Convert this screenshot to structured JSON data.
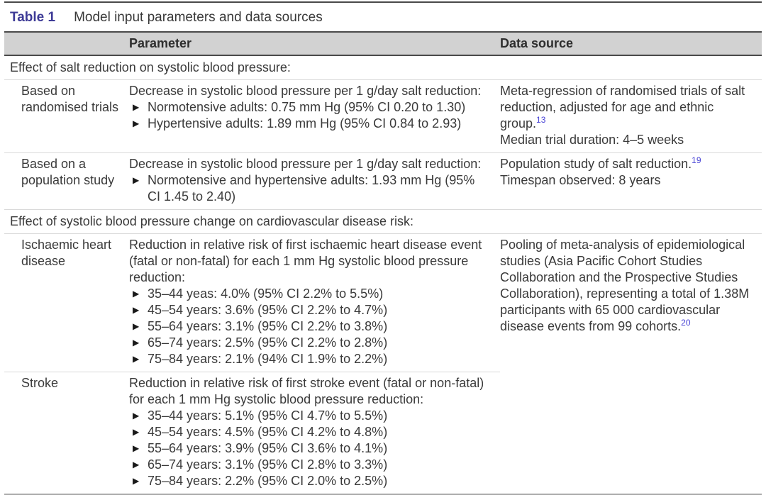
{
  "glyphs": {
    "bullet": "▶"
  },
  "colors": {
    "table_label": "#3d3a96",
    "citation_ref": "#4843d6",
    "header_band_bg": "#d2d2d2",
    "rule_dark": "#4a4a4a",
    "rule_light": "#d9d9d9",
    "rule_bottom": "#a9a9a9",
    "body_text": "#3a3a3a"
  },
  "table": {
    "label": "Table 1",
    "caption": "Model input parameters and data sources",
    "columns": [
      "Parameter",
      "Data source"
    ],
    "sections": [
      {
        "heading": "Effect of salt reduction on systolic blood pressure:",
        "rows": [
          {
            "label": "Based on randomised trials",
            "intro": "Decrease in systolic blood pressure per 1 g/day salt reduction:",
            "bullets": [
              "Normotensive adults: 0.75 mm Hg (95% CI 0.20 to 1.30)",
              "Hypertensive adults: 1.89 mm Hg (95% CI 0.84 to 2.93)"
            ],
            "source": {
              "text": "Meta-regression of randomised trials of salt reduction, adjusted for age and ethnic group.",
              "ref": "13",
              "extra": "Median trial duration: 4–5 weeks"
            }
          },
          {
            "label": "Based on a population study",
            "intro": "Decrease in systolic blood pressure per 1 g/day salt reduction:",
            "bullets": [
              "Normotensive and hypertensive adults: 1.93 mm Hg (95% CI 1.45 to 2.40)"
            ],
            "source": {
              "text": "Population study of salt reduction.",
              "ref": "19",
              "extra": "Timespan observed: 8 years"
            }
          }
        ]
      },
      {
        "heading": "Effect of systolic blood pressure change on cardiovascular disease risk:",
        "rows": [
          {
            "label": "Ischaemic heart disease",
            "intro": "Reduction in relative risk of first ischaemic heart disease event (fatal or non-fatal) for each 1 mm Hg systolic blood pressure reduction:",
            "bullets": [
              "35–44 yeas: 4.0% (95% CI 2.2% to 5.5%)",
              "45–54 years: 3.6% (95% CI 2.2% to 4.7%)",
              "55–64 years: 3.1% (95% CI 2.2% to 3.8%)",
              "65–74 years: 2.5% (95% CI 2.2% to 2.8%)",
              "75–84 years: 2.1% (94% CI 1.9% to 2.2%)"
            ],
            "source": {
              "text": "Pooling of meta-analysis of epidemiological studies (Asia Pacific Cohort Studies Collaboration and the Prospective Studies Collaboration), representing a total of 1.38M participants with 65 000 cardiovascular disease events from 99 cohorts.",
              "ref": "20",
              "extra": ""
            }
          },
          {
            "label": "Stroke",
            "intro": "Reduction in relative risk of first stroke event (fatal or non-fatal) for each 1 mm Hg systolic blood pressure reduction:",
            "bullets": [
              "35–44 years: 5.1% (95% CI 4.7% to 5.5%)",
              "45–54 years: 4.5% (95% CI 4.2% to 4.8%)",
              "55–64 years: 3.9% (95% CI 3.6% to 4.1%)",
              "65–74 years: 3.1% (95% CI 2.8% to 3.3%)",
              "75–84 years: 2.2% (95% CI 2.0% to 2.5%)"
            ]
          }
        ]
      }
    ]
  }
}
